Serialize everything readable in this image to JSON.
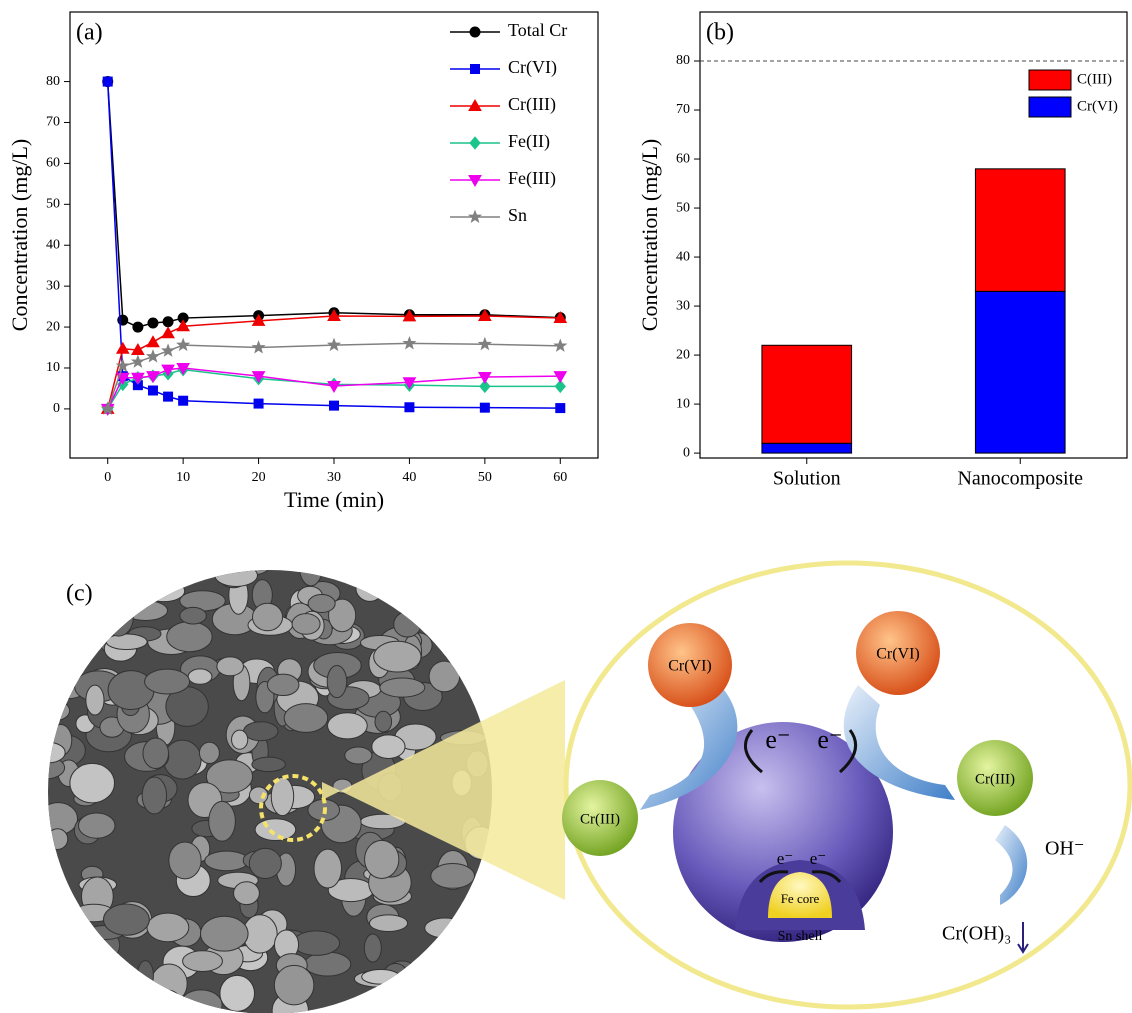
{
  "chart_data": [
    {
      "type": "line",
      "panel_label": "(a)",
      "x_label": "Time (min)",
      "y_label": "Concentration (mg/L)",
      "x": [
        0,
        2,
        4,
        6,
        8,
        10,
        20,
        30,
        40,
        50,
        60
      ],
      "xlim": [
        -5,
        65
      ],
      "xticks": [
        0,
        10,
        20,
        30,
        40,
        50,
        60
      ],
      "ylim": [
        -12,
        97
      ],
      "yticks": [
        0,
        10,
        20,
        30,
        40,
        50,
        60,
        70,
        80
      ],
      "series": [
        {
          "name": "Total Cr",
          "color": "#000000",
          "marker": "circle",
          "values": [
            80,
            21.7,
            20,
            21,
            21.3,
            22.2,
            22.8,
            23.5,
            23,
            23,
            22.3
          ]
        },
        {
          "name": "Cr(VI)",
          "color": "#0000ee",
          "marker": "square",
          "values": [
            80,
            8,
            5.8,
            4.5,
            3,
            2,
            1.3,
            0.8,
            0.4,
            0.3,
            0.2
          ]
        },
        {
          "name": "Cr(III)",
          "color": "#ee0000",
          "marker": "triangle-up",
          "values": [
            0,
            14.7,
            14.4,
            16.3,
            18.5,
            20.2,
            21.5,
            22.7,
            22.6,
            22.7,
            22.2
          ]
        },
        {
          "name": "Fe(II)",
          "color": "#1bc48a",
          "marker": "diamond",
          "values": [
            0,
            6,
            7.6,
            8,
            8.6,
            9.6,
            7.4,
            6,
            5.8,
            5.5,
            5.5
          ]
        },
        {
          "name": "Fe(III)",
          "color": "#ee00ee",
          "marker": "triangle-down",
          "values": [
            0,
            7.6,
            7.6,
            8,
            9.6,
            10,
            8,
            5.6,
            6.5,
            7.8,
            8
          ]
        },
        {
          "name": "Sn",
          "color": "#808080",
          "marker": "star",
          "values": [
            0,
            10.5,
            11.5,
            12.8,
            14.2,
            15.6,
            15,
            15.6,
            16,
            15.8,
            15.4
          ]
        }
      ]
    },
    {
      "type": "stacked-bar",
      "panel_label": "(b)",
      "y_label": "Concentration (mg/L)",
      "categories": [
        "Solution",
        "Nanocomposite"
      ],
      "ylim": [
        -1,
        90
      ],
      "yticks": [
        0,
        10,
        20,
        30,
        40,
        50,
        60,
        70,
        80
      ],
      "ref_line": 80,
      "series": [
        {
          "name": "Cr(VI)",
          "color": "#0000ff",
          "values": [
            2,
            33
          ]
        },
        {
          "name": "C(III)",
          "color": "#ff0000",
          "values": [
            20,
            25
          ]
        }
      ]
    }
  ],
  "diagram": {
    "panel_label": "(c)",
    "cr6_left": "Cr(VI)",
    "cr6_right": "Cr(VI)",
    "cr3_left": "Cr(III)",
    "cr3_right": "Cr(III)",
    "electron_left": "e⁻",
    "electron_right": "e⁻",
    "electron_inner_left": "e⁻",
    "electron_inner_right": "e⁻",
    "core": "Fe core",
    "shell": "Sn shell",
    "hydroxide": "OH⁻",
    "product": "Cr(OH)₃"
  }
}
